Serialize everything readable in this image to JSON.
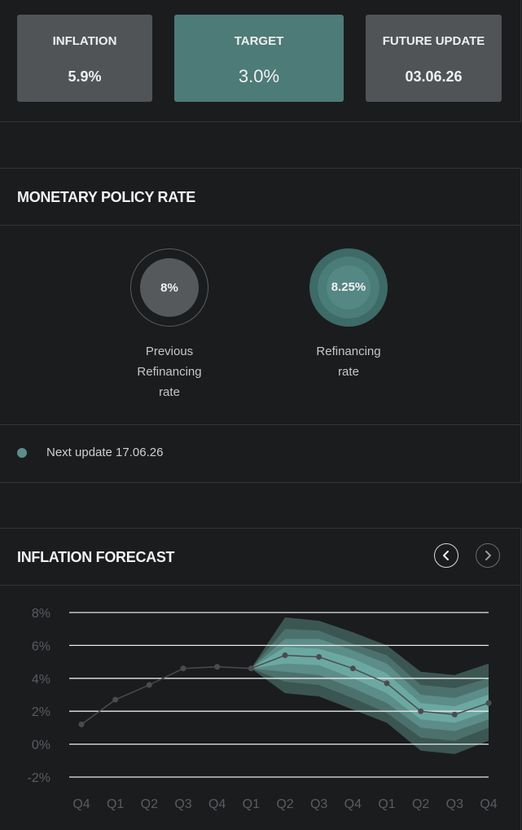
{
  "stats": [
    {
      "label": "INFLATION",
      "value": "5.9%"
    },
    {
      "label": "TARGET",
      "value": "3.0%"
    },
    {
      "label": "FUTURE UPDATE",
      "value": "03.06.26"
    }
  ],
  "policy": {
    "title": "MONETARY POLICY RATE",
    "previous": {
      "value": "8%",
      "caption_lines": [
        "Previous",
        "Refinancing",
        "rate"
      ]
    },
    "current": {
      "value": "8.25%",
      "caption_lines": [
        "Refinancing",
        "rate"
      ]
    },
    "next_update": "Next update 17.06.26",
    "colors": {
      "accent": "#5b8e8a",
      "previous": "#55595c"
    }
  },
  "forecast": {
    "title": "INFLATION FORECAST",
    "prev_icon": "chevron-left-icon",
    "next_icon": "chevron-right-icon"
  },
  "chart_data": {
    "type": "line",
    "title": "",
    "xlabel": "",
    "ylabel": "",
    "ylim": [
      -2,
      8
    ],
    "y_ticks": [
      "8%",
      "6%",
      "4%",
      "2%",
      "0%",
      "-2%"
    ],
    "y_tick_values": [
      8,
      6,
      4,
      2,
      0,
      -2
    ],
    "categories": [
      "Q4",
      "Q1",
      "Q2",
      "Q3",
      "Q4",
      "Q1",
      "Q2",
      "Q3",
      "Q4",
      "Q1",
      "Q2",
      "Q3",
      "Q4"
    ],
    "series": [
      {
        "values": [
          1.2,
          2.7,
          3.6,
          4.6,
          4.7,
          4.6,
          5.4,
          5.3,
          4.6,
          3.7,
          2.0,
          1.8,
          2.5
        ]
      }
    ],
    "forecast_start_index": 5,
    "fan_bands": [
      {
        "low": [
          4.6,
          3.1,
          2.9,
          2.1,
          1.3,
          -0.4,
          -0.6,
          0.2
        ],
        "high": [
          4.6,
          7.7,
          7.5,
          6.8,
          6.0,
          4.4,
          4.2,
          4.9
        ]
      },
      {
        "low": [
          4.6,
          3.8,
          3.6,
          2.8,
          1.9,
          0.4,
          0.2,
          1.0
        ],
        "high": [
          4.6,
          7.0,
          6.9,
          6.1,
          5.4,
          3.6,
          3.4,
          4.0
        ]
      },
      {
        "low": [
          4.6,
          4.4,
          4.2,
          3.4,
          2.5,
          1.0,
          0.8,
          1.5
        ],
        "high": [
          4.6,
          6.4,
          6.4,
          5.7,
          4.9,
          3.0,
          2.8,
          3.5
        ]
      },
      {
        "low": [
          4.6,
          4.9,
          4.8,
          4.0,
          3.1,
          1.5,
          1.3,
          2.0
        ],
        "high": [
          4.6,
          5.9,
          5.8,
          5.2,
          4.3,
          2.5,
          2.3,
          3.0
        ]
      }
    ],
    "colors": {
      "bands": [
        "#3b5652",
        "#4c716c",
        "#5c8d88",
        "#6ca8a2"
      ],
      "line": "#4a4c4f",
      "grid": "#e8e8e8",
      "ticks": "#5a5c60"
    },
    "grid": true
  }
}
